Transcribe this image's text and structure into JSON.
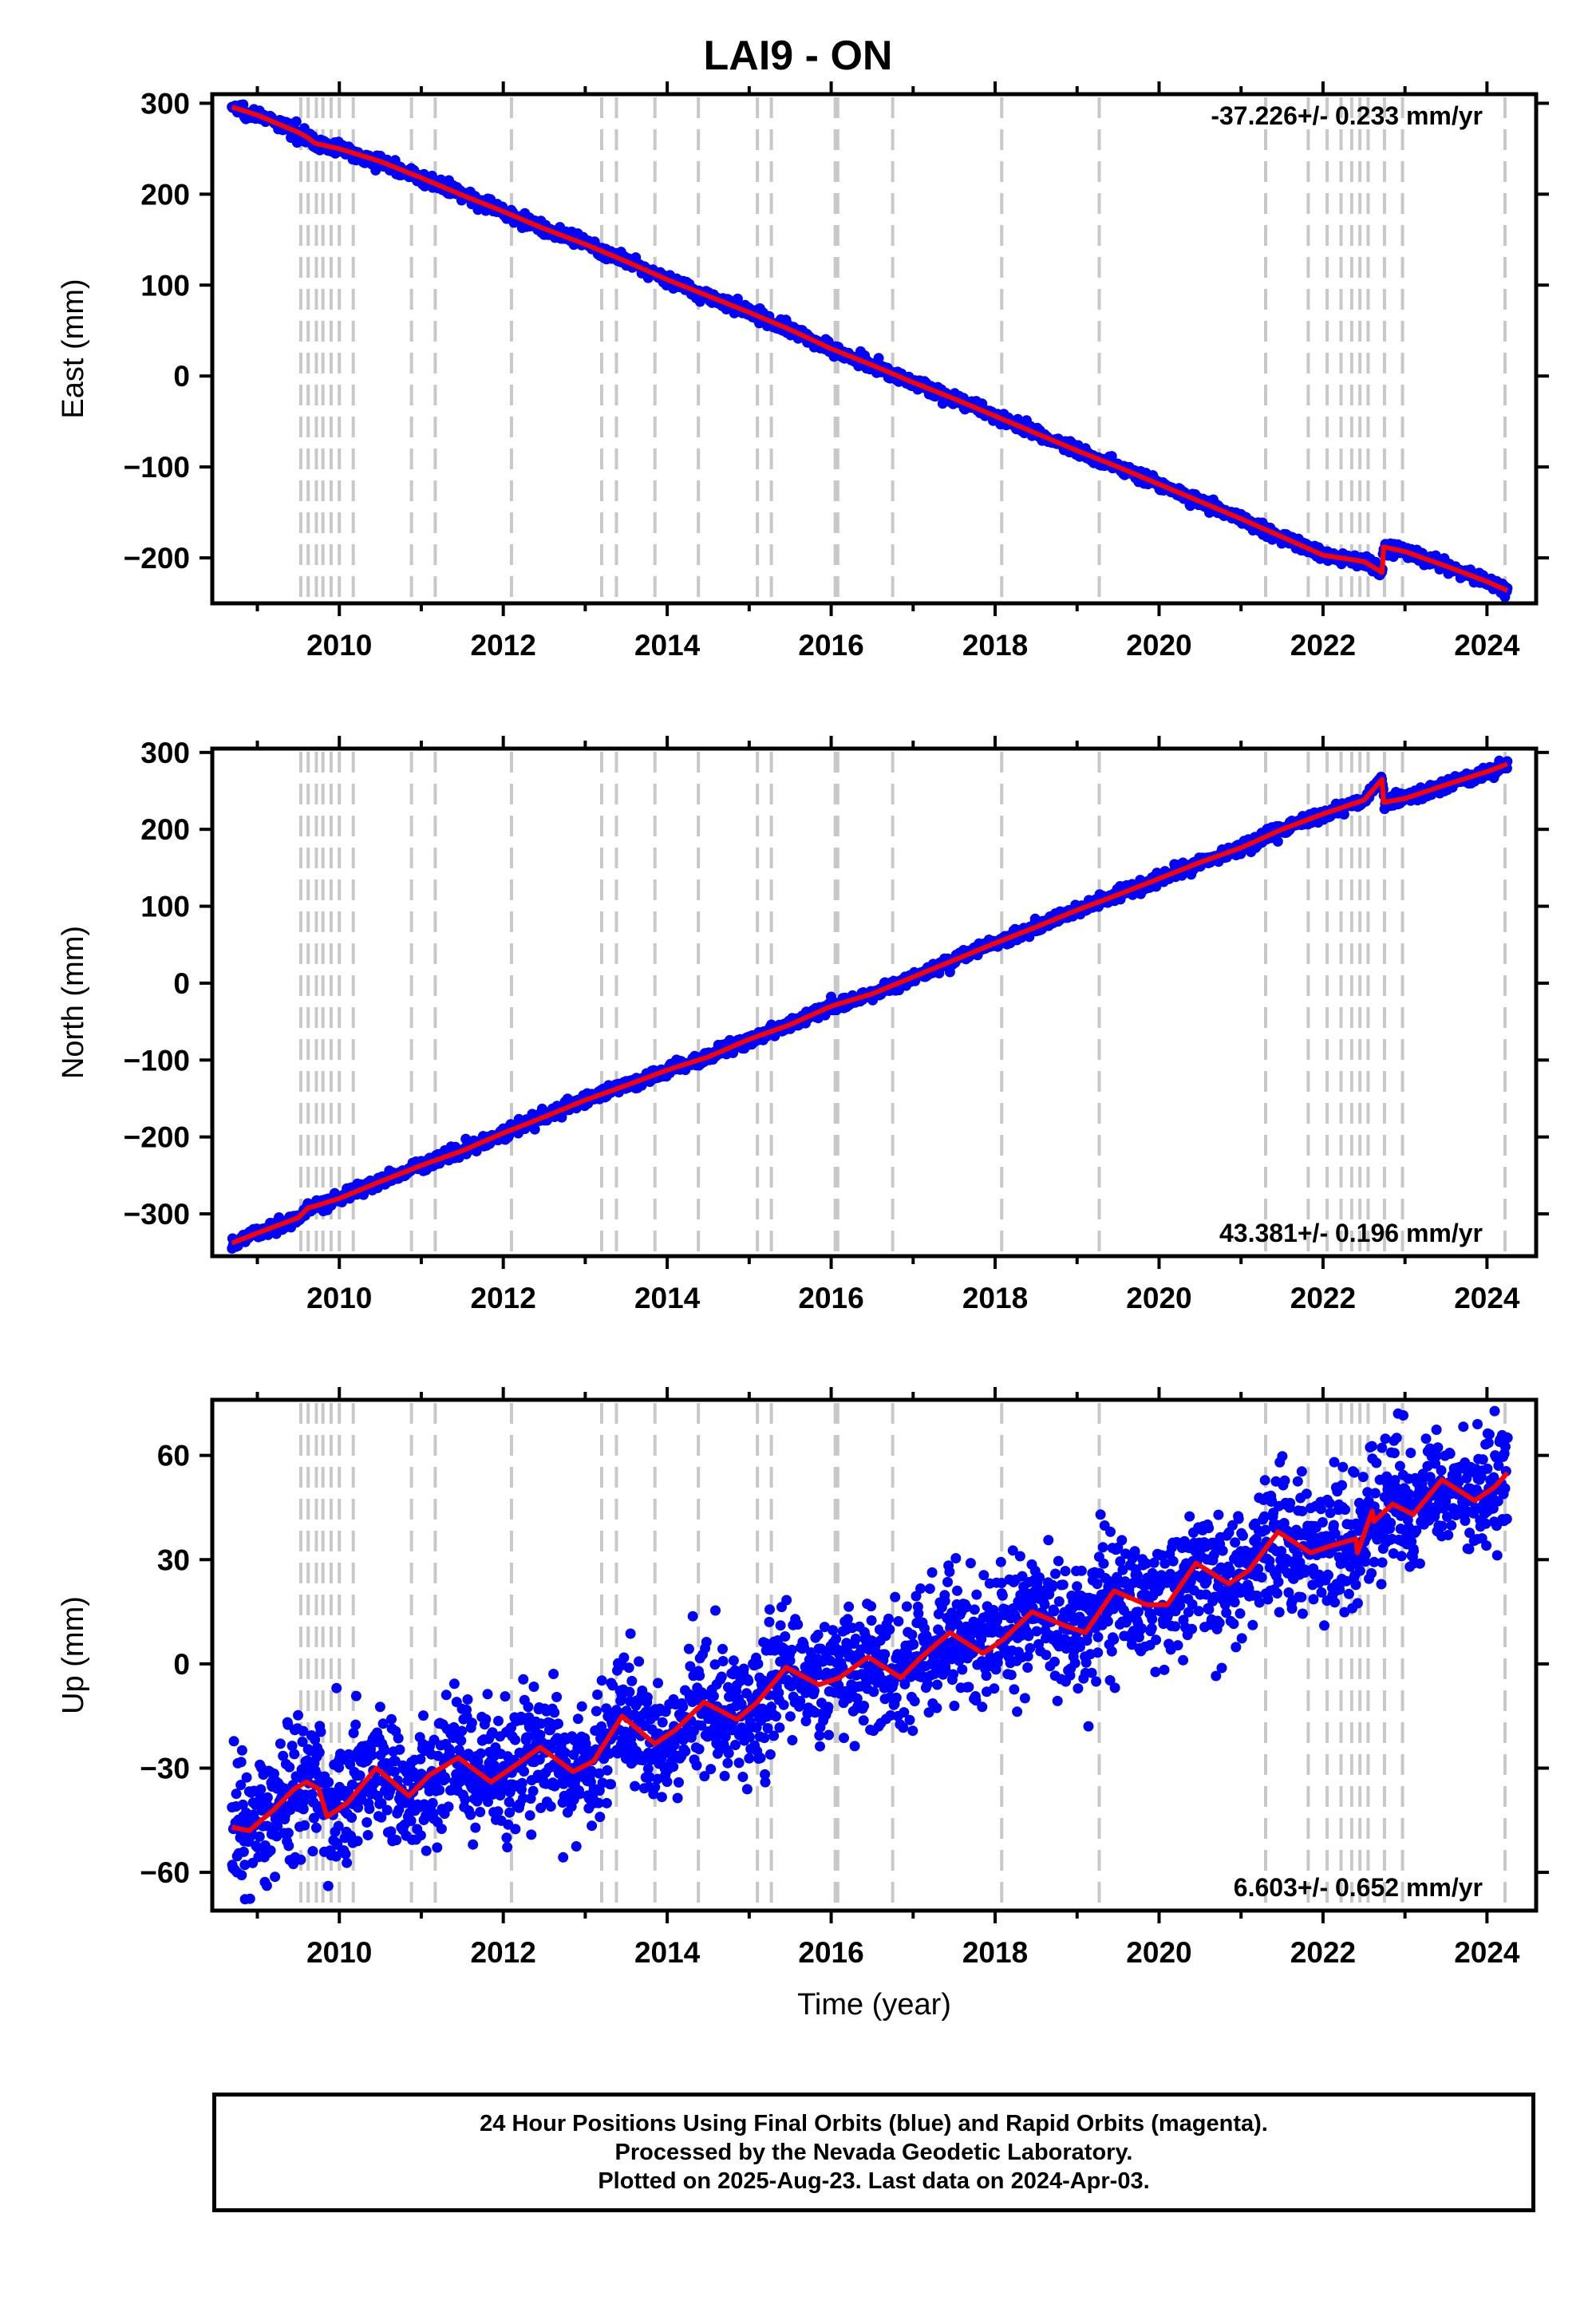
{
  "title": "LAI9 - ON",
  "footer": {
    "line1": "24 Hour Positions Using Final Orbits (blue) and Rapid Orbits (magenta).",
    "line2": "Processed by the Nevada Geodetic Laboratory.",
    "line3": "Plotted on 2025-Aug-23. Last data on 2024-Apr-03."
  },
  "colors": {
    "data": "#0000ff",
    "model": "#ff0000",
    "event_lines": "#c8c8c8",
    "frame": "#000000"
  },
  "chart_data": [
    {
      "type": "scatter",
      "ylabel": "East (mm)",
      "xlim": [
        2008.45,
        2024.6
      ],
      "ylim": [
        -250,
        310
      ],
      "yticks": [
        -200,
        -100,
        0,
        100,
        200,
        300
      ],
      "xticks": [
        2010,
        2012,
        2014,
        2016,
        2018,
        2020,
        2022,
        2024
      ],
      "rate_label": "-37.226+/- 0.233 mm/yr",
      "rate_label_position": "top-right",
      "grid": false,
      "series": [
        {
          "role": "data",
          "x": [
            2008.69,
            2009.0,
            2009.5,
            2009.62,
            2009.7,
            2010.0,
            2010.5,
            2011.0,
            2011.5,
            2012.0,
            2012.5,
            2013.0,
            2013.5,
            2014.0,
            2014.5,
            2015.0,
            2015.5,
            2016.0,
            2016.5,
            2017.0,
            2017.5,
            2018.0,
            2018.5,
            2019.0,
            2019.5,
            2020.0,
            2020.5,
            2021.0,
            2021.5,
            2022.0,
            2022.5,
            2022.72,
            2022.74,
            2023.0,
            2023.5,
            2024.0,
            2024.25
          ],
          "y": [
            296,
            287,
            268,
            262,
            256,
            250,
            236,
            218,
            199,
            181,
            162,
            145,
            126,
            106,
            88,
            70,
            51,
            30,
            12,
            -7,
            -25,
            -44,
            -63,
            -82,
            -100,
            -119,
            -138,
            -157,
            -177,
            -197,
            -204,
            -216,
            -188,
            -193,
            -209,
            -226,
            -236
          ]
        },
        {
          "role": "model",
          "x": [
            2008.69,
            2009.0,
            2009.5,
            2009.62,
            2009.7,
            2010.0,
            2010.5,
            2011.0,
            2011.5,
            2012.0,
            2012.5,
            2013.0,
            2013.5,
            2014.0,
            2014.5,
            2015.0,
            2015.5,
            2016.0,
            2016.5,
            2017.0,
            2017.5,
            2018.0,
            2018.5,
            2019.0,
            2019.5,
            2020.0,
            2020.5,
            2021.0,
            2021.5,
            2022.0,
            2022.5,
            2022.72,
            2022.74,
            2023.0,
            2023.5,
            2024.0,
            2024.25
          ],
          "y": [
            296,
            287,
            268,
            262,
            256,
            250,
            236,
            218,
            199,
            181,
            162,
            145,
            126,
            106,
            88,
            70,
            51,
            30,
            12,
            -7,
            -25,
            -44,
            -63,
            -82,
            -100,
            -119,
            -138,
            -157,
            -177,
            -197,
            -204,
            -216,
            -188,
            -193,
            -209,
            -226,
            -236
          ]
        }
      ]
    },
    {
      "type": "scatter",
      "ylabel": "North (mm)",
      "xlim": [
        2008.45,
        2024.6
      ],
      "ylim": [
        -355,
        305
      ],
      "yticks": [
        -300,
        -200,
        -100,
        0,
        100,
        200,
        300
      ],
      "xticks": [
        2010,
        2012,
        2014,
        2016,
        2018,
        2020,
        2022,
        2024
      ],
      "rate_label": "43.381+/- 0.196 mm/yr",
      "rate_label_position": "bottom-right",
      "grid": false,
      "series": [
        {
          "role": "data",
          "x": [
            2008.69,
            2009.0,
            2009.5,
            2009.62,
            2009.7,
            2010.0,
            2010.5,
            2011.0,
            2011.5,
            2012.0,
            2012.5,
            2013.0,
            2013.5,
            2014.0,
            2014.5,
            2015.0,
            2015.5,
            2016.0,
            2016.5,
            2017.0,
            2017.5,
            2018.0,
            2018.5,
            2019.0,
            2019.5,
            2020.0,
            2020.5,
            2021.0,
            2021.5,
            2022.0,
            2022.5,
            2022.72,
            2022.74,
            2023.0,
            2023.5,
            2024.0,
            2024.25
          ],
          "y": [
            -338,
            -325,
            -305,
            -292,
            -290,
            -280,
            -258,
            -237,
            -218,
            -195,
            -174,
            -152,
            -133,
            -113,
            -96,
            -73,
            -54,
            -30,
            -14,
            8,
            30,
            52,
            73,
            95,
            115,
            136,
            157,
            176,
            200,
            220,
            238,
            265,
            235,
            240,
            258,
            275,
            285
          ]
        },
        {
          "role": "model",
          "x": [
            2008.69,
            2009.0,
            2009.5,
            2009.62,
            2009.7,
            2010.0,
            2010.5,
            2011.0,
            2011.5,
            2012.0,
            2012.5,
            2013.0,
            2013.5,
            2014.0,
            2014.5,
            2015.0,
            2015.5,
            2016.0,
            2016.5,
            2017.0,
            2017.5,
            2018.0,
            2018.5,
            2019.0,
            2019.5,
            2020.0,
            2020.5,
            2021.0,
            2021.5,
            2022.0,
            2022.5,
            2022.72,
            2022.74,
            2023.0,
            2023.5,
            2024.0,
            2024.25
          ],
          "y": [
            -338,
            -325,
            -305,
            -292,
            -290,
            -280,
            -258,
            -237,
            -218,
            -195,
            -174,
            -152,
            -133,
            -113,
            -96,
            -73,
            -54,
            -30,
            -14,
            8,
            30,
            52,
            73,
            95,
            115,
            136,
            157,
            176,
            200,
            220,
            238,
            265,
            235,
            240,
            258,
            275,
            285
          ]
        }
      ]
    },
    {
      "type": "scatter",
      "ylabel": "Up (mm)",
      "xlabel": "Time (year)",
      "xlim": [
        2008.45,
        2024.6
      ],
      "ylim": [
        -71,
        76
      ],
      "yticks": [
        -60,
        -30,
        0,
        30,
        60
      ],
      "xticks": [
        2010,
        2012,
        2014,
        2016,
        2018,
        2020,
        2022,
        2024
      ],
      "rate_label": "6.603+/- 0.652 mm/yr",
      "rate_label_position": "bottom-right",
      "grid": false,
      "series": [
        {
          "role": "data",
          "x": [
            2008.69,
            2008.9,
            2009.2,
            2009.45,
            2009.6,
            2009.75,
            2009.85,
            2010.1,
            2010.45,
            2010.85,
            2011.1,
            2011.45,
            2011.85,
            2012.1,
            2012.45,
            2012.85,
            2013.1,
            2013.45,
            2013.85,
            2014.1,
            2014.45,
            2014.85,
            2015.1,
            2015.45,
            2015.85,
            2016.1,
            2016.45,
            2016.85,
            2017.1,
            2017.45,
            2017.85,
            2018.1,
            2018.45,
            2018.85,
            2019.1,
            2019.45,
            2019.85,
            2020.1,
            2020.45,
            2020.85,
            2021.1,
            2021.45,
            2021.85,
            2022.1,
            2022.4,
            2022.42,
            2022.6,
            2022.62,
            2022.85,
            2023.1,
            2023.45,
            2023.85,
            2024.1,
            2024.25
          ],
          "y": [
            -47,
            -48,
            -42,
            -36,
            -34,
            -36,
            -44,
            -40,
            -30,
            -38,
            -32,
            -27,
            -34,
            -30,
            -24,
            -31,
            -28,
            -15,
            -23,
            -19,
            -11,
            -16,
            -11,
            -1,
            -6,
            -4,
            2,
            -4,
            2,
            9,
            3,
            7,
            15,
            11,
            9,
            21,
            17,
            17,
            29,
            23,
            27,
            38,
            32,
            34,
            36,
            32,
            44,
            41,
            46,
            43,
            53,
            47,
            51,
            55
          ]
        },
        {
          "role": "model",
          "x": [
            2008.69,
            2008.9,
            2009.2,
            2009.45,
            2009.6,
            2009.75,
            2009.85,
            2010.1,
            2010.45,
            2010.85,
            2011.1,
            2011.45,
            2011.85,
            2012.1,
            2012.45,
            2012.85,
            2013.1,
            2013.45,
            2013.85,
            2014.1,
            2014.45,
            2014.85,
            2015.1,
            2015.45,
            2015.85,
            2016.1,
            2016.45,
            2016.85,
            2017.1,
            2017.45,
            2017.85,
            2018.1,
            2018.45,
            2018.85,
            2019.1,
            2019.45,
            2019.85,
            2020.1,
            2020.45,
            2020.85,
            2021.1,
            2021.45,
            2021.85,
            2022.1,
            2022.4,
            2022.42,
            2022.6,
            2022.62,
            2022.85,
            2023.1,
            2023.45,
            2023.85,
            2024.1,
            2024.25
          ],
          "y": [
            -47,
            -48,
            -42,
            -36,
            -34,
            -36,
            -44,
            -40,
            -30,
            -38,
            -32,
            -27,
            -34,
            -30,
            -24,
            -31,
            -28,
            -15,
            -23,
            -19,
            -11,
            -16,
            -11,
            -1,
            -6,
            -4,
            2,
            -4,
            2,
            9,
            3,
            7,
            15,
            11,
            9,
            21,
            17,
            17,
            29,
            23,
            27,
            38,
            32,
            34,
            36,
            32,
            44,
            41,
            46,
            43,
            53,
            47,
            51,
            55
          ]
        }
      ]
    }
  ],
  "event_lines_x": [
    2009.53,
    2009.62,
    2009.72,
    2009.8,
    2009.9,
    2010.0,
    2010.17,
    2010.88,
    2011.17,
    2012.1,
    2013.2,
    2013.38,
    2013.85,
    2014.38,
    2015.1,
    2015.27,
    2016.05,
    2016.08,
    2016.75,
    2018.08,
    2019.27,
    2021.3,
    2021.82,
    2022.05,
    2022.22,
    2022.35,
    2022.45,
    2022.55,
    2022.75,
    2022.97,
    2024.22
  ]
}
